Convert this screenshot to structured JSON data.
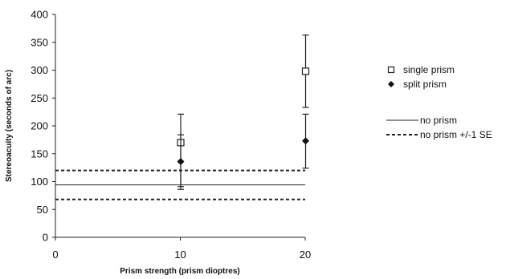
{
  "chart_data": {
    "type": "scatter",
    "xlabel": "Prism strength (prism dioptres)",
    "ylabel": "Stereoacuity (seconds of arc)",
    "xlim": [
      0,
      20
    ],
    "ylim": [
      0,
      400
    ],
    "xticks": [
      0,
      10,
      20
    ],
    "yticks": [
      0,
      50,
      100,
      150,
      200,
      250,
      300,
      350,
      400
    ],
    "grid": false,
    "legend_position": "right",
    "series": [
      {
        "name": "single prism",
        "marker": "open-square",
        "color": "#333333",
        "points": [
          {
            "x": 10,
            "y": 170,
            "err_low": 86,
            "err_high": 221
          },
          {
            "x": 20,
            "y": 298,
            "err_low": 233,
            "err_high": 363
          }
        ]
      },
      {
        "name": "split prism",
        "marker": "filled-diamond",
        "color": "#111111",
        "points": [
          {
            "x": 10,
            "y": 136,
            "err_low": 91,
            "err_high": 184
          },
          {
            "x": 20,
            "y": 173,
            "err_low": 124,
            "err_high": 221
          }
        ]
      }
    ],
    "reference_lines": [
      {
        "name": "no prism",
        "style": "solid",
        "y": 94
      },
      {
        "name": "no prism +/-1 SE",
        "style": "dashed",
        "y": 120
      },
      {
        "name": "no prism +/-1 SE",
        "style": "dashed",
        "y": 68
      }
    ]
  }
}
